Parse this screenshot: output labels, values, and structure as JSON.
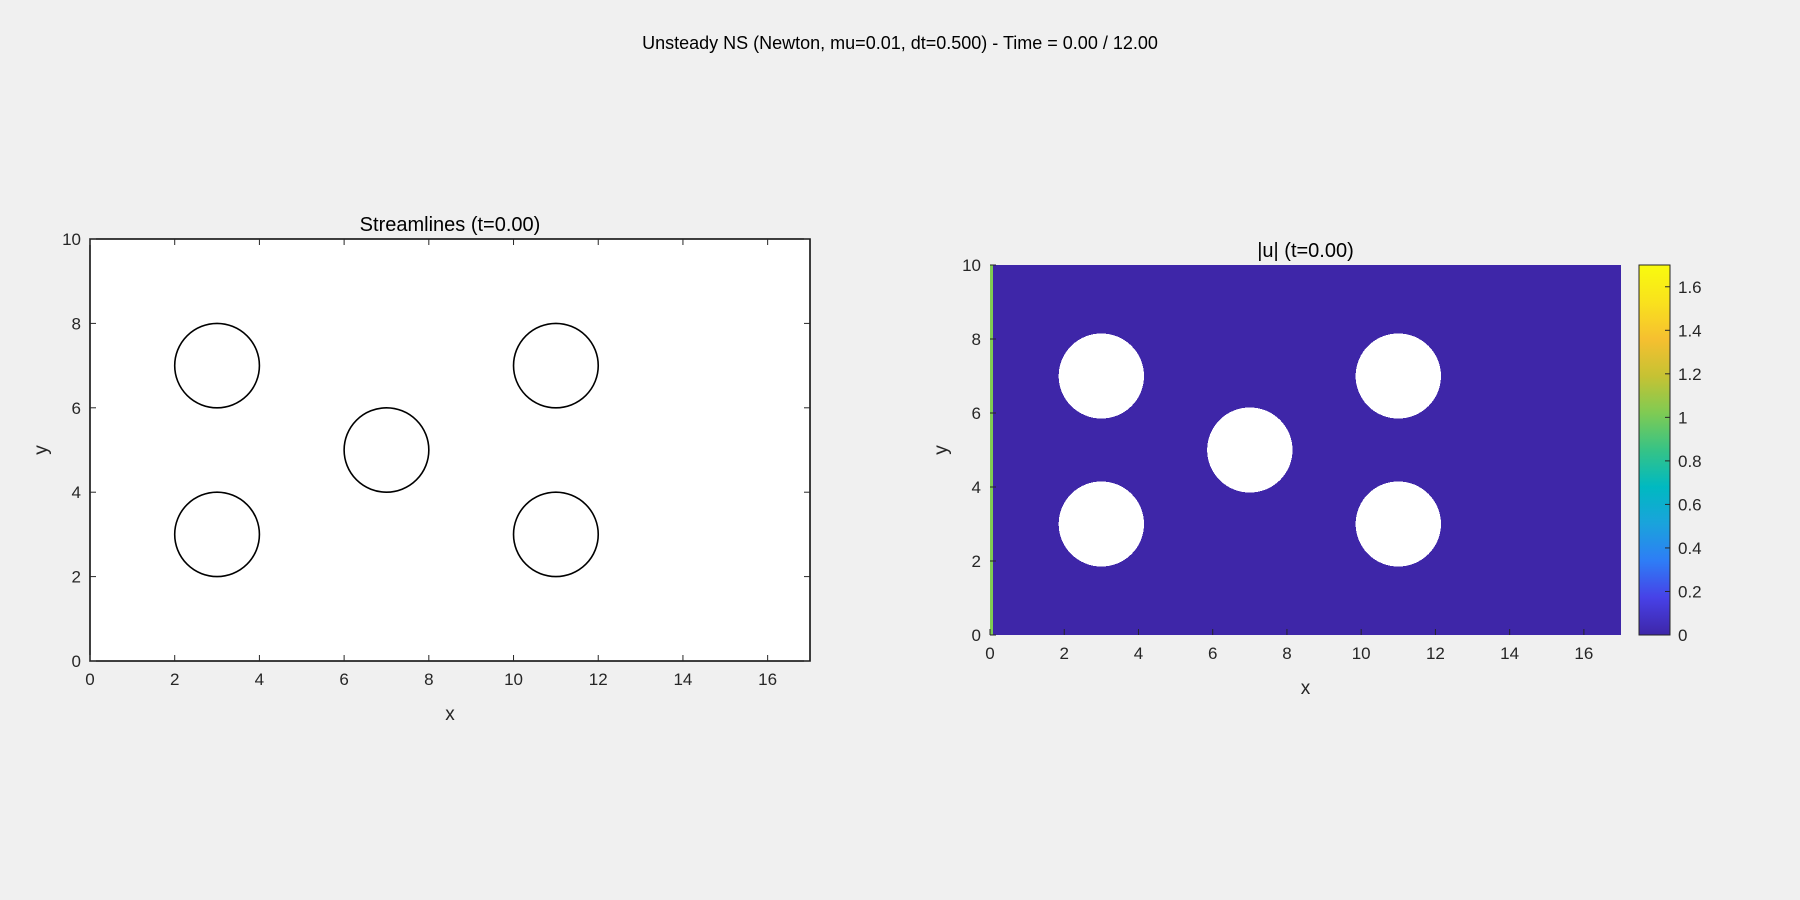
{
  "figure": {
    "suptitle": "Unsteady NS (Newton, mu=0.01, dt=0.500) - Time = 0.00 / 12.00",
    "background": "#f0f0f0"
  },
  "chart_data": [
    {
      "type": "line",
      "title": "Streamlines (t=0.00)",
      "xlabel": "x",
      "ylabel": "y",
      "xlim": [
        0,
        17
      ],
      "ylim": [
        0,
        10
      ],
      "xticks": [
        0,
        2,
        4,
        6,
        8,
        10,
        12,
        14,
        16
      ],
      "yticks": [
        0,
        2,
        4,
        6,
        8,
        10
      ],
      "grid": false,
      "obstacles": [
        {
          "cx": 3,
          "cy": 7,
          "r": 1
        },
        {
          "cx": 3,
          "cy": 3,
          "r": 1
        },
        {
          "cx": 7,
          "cy": 5,
          "r": 1
        },
        {
          "cx": 11,
          "cy": 7,
          "r": 1
        },
        {
          "cx": 11,
          "cy": 3,
          "r": 1
        }
      ],
      "streamlines": [],
      "background_color": "#ffffff",
      "outline_color": "#000000"
    },
    {
      "type": "heatmap",
      "title": "|u| (t=0.00)",
      "xlabel": "x",
      "ylabel": "y",
      "xlim": [
        0,
        17
      ],
      "ylim": [
        0,
        10
      ],
      "xticks": [
        0,
        2,
        4,
        6,
        8,
        10,
        12,
        14,
        16
      ],
      "yticks": [
        0,
        2,
        4,
        6,
        8,
        10
      ],
      "field_value": 0,
      "inlet_value": 1,
      "obstacles": [
        {
          "cx": 3,
          "cy": 7,
          "r": 1.15
        },
        {
          "cx": 3,
          "cy": 3,
          "r": 1.15
        },
        {
          "cx": 7,
          "cy": 5,
          "r": 1.15
        },
        {
          "cx": 11,
          "cy": 7,
          "r": 1.15
        },
        {
          "cx": 11,
          "cy": 3,
          "r": 1.15
        }
      ],
      "colorbar": {
        "clim": [
          0,
          1.7
        ],
        "ticks": [
          0,
          0.2,
          0.4,
          0.6,
          0.8,
          1,
          1.2,
          1.4,
          1.6
        ],
        "colormap": "parula",
        "colormap_stops": [
          "#3e26a8",
          "#4741e7",
          "#2e7df6",
          "#1aa3dc",
          "#00b9c1",
          "#36c386",
          "#7fcb53",
          "#c6c233",
          "#f6c030",
          "#f9e21d",
          "#f9fb0e"
        ]
      },
      "hole_color": "#ffffff",
      "grid": false
    }
  ]
}
